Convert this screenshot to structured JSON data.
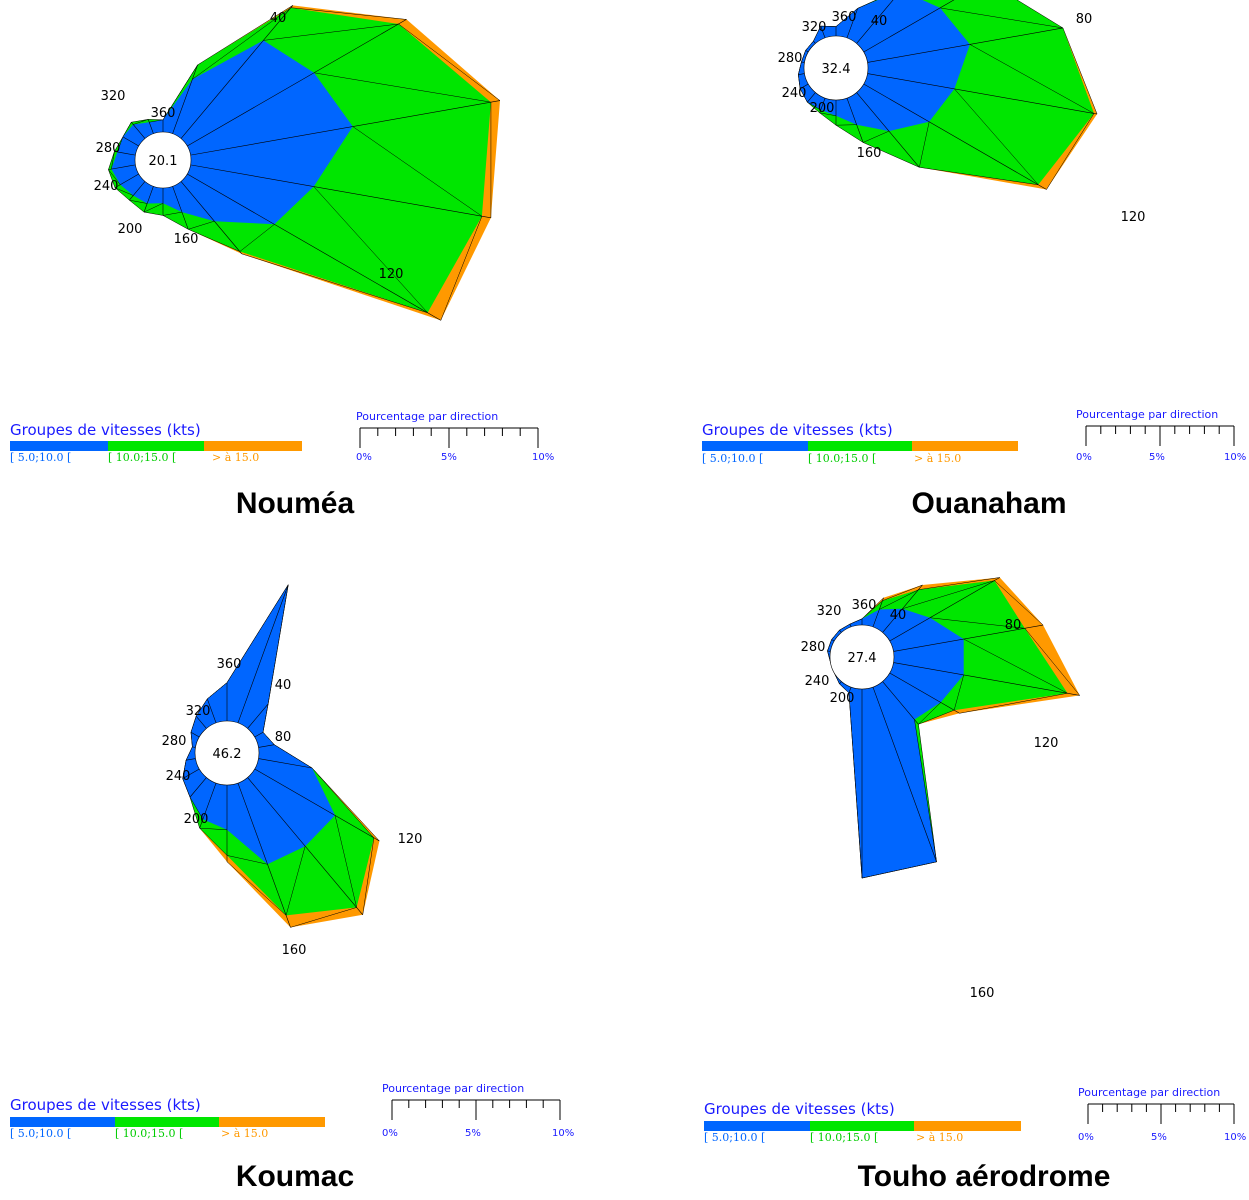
{
  "colors": {
    "low": "#0066ff",
    "mid": "#00e600",
    "high": "#ff9900",
    "text_blue": "#1a1aff",
    "edge": "#000000"
  },
  "legend": {
    "title": "Groupes de vitesses (kts)",
    "bins": [
      "[ 5.0;10.0 [",
      "[ 10.0;15.0 [",
      "> à 15.0"
    ]
  },
  "scale": {
    "title": "Pourcentage par direction",
    "labels": [
      "0%",
      "5%",
      "10%"
    ]
  },
  "chart_data": [
    {
      "type": "polar-area",
      "station": "Nouméa",
      "calm_percent": "20.1",
      "direction_labels": [
        "40",
        "120",
        "160",
        "200",
        "240",
        "280",
        "320",
        "360"
      ],
      "unit": "%",
      "directions": [
        360,
        20,
        40,
        60,
        80,
        100,
        120,
        140,
        160,
        180,
        200,
        220,
        240,
        260,
        280,
        300,
        320,
        340
      ],
      "series": [
        {
          "name": "[ 5.0;10.0 [",
          "values": [
            0.4,
            1.9,
            4.2,
            4.8,
            5.4,
            4.1,
            3.3,
            1.7,
            0.9,
            0.5,
            0.6,
            0.6,
            0.7,
            0.8,
            0.6,
            0.6,
            0.6,
            0.4
          ]
        },
        {
          "name": "[ 10.0;15.0 [",
          "values": [
            0.0,
            0.5,
            1.4,
            3.2,
            4.6,
            5.6,
            5.8,
            1.3,
            0.6,
            0.4,
            0.3,
            0.2,
            0.2,
            0.1,
            0.1,
            0.0,
            0.1,
            0.1
          ]
        },
        {
          "name": "> à 15.0",
          "values": [
            0.0,
            0.0,
            0.1,
            0.3,
            0.3,
            0.3,
            0.5,
            0.1,
            0.0,
            0.0,
            0.0,
            0.0,
            0.0,
            0.0,
            0.0,
            0.0,
            0.0,
            0.0
          ]
        }
      ]
    },
    {
      "type": "polar-area",
      "station": "Ouanaham",
      "calm_percent": "32.4",
      "direction_labels": [
        "40",
        "80",
        "120",
        "160",
        "200",
        "240",
        "280",
        "320",
        "360"
      ],
      "unit": "%",
      "directions": [
        360,
        20,
        40,
        60,
        80,
        100,
        120,
        140,
        160,
        180,
        200,
        220,
        240,
        260,
        280,
        300,
        320,
        340
      ],
      "series": [
        {
          "name": "[ 5.0;10.0 [",
          "values": [
            0.3,
            1.0,
            2.2,
            2.8,
            3.3,
            2.8,
            2.4,
            1.6,
            0.9,
            0.5,
            0.4,
            0.4,
            0.3,
            0.2,
            0.1,
            0.1,
            0.1,
            0.4
          ]
        },
        {
          "name": "[ 10.0;15.0 [",
          "values": [
            0.0,
            0.0,
            0.1,
            1.7,
            3.0,
            4.5,
            4.0,
            1.5,
            0.6,
            0.3,
            0.1,
            0.0,
            0.0,
            0.0,
            0.0,
            0.0,
            0.0,
            0.0
          ]
        },
        {
          "name": "> à 15.0",
          "values": [
            0.0,
            0.0,
            0.0,
            0.0,
            0.0,
            0.1,
            0.3,
            0.0,
            0.0,
            0.0,
            0.0,
            0.0,
            0.0,
            0.0,
            0.0,
            0.0,
            0.0,
            0.0
          ]
        }
      ]
    },
    {
      "type": "polar-area",
      "station": "Koumac",
      "calm_percent": "46.2",
      "direction_labels": [
        "40",
        "80",
        "120",
        "160",
        "200",
        "240",
        "280",
        "320",
        "360"
      ],
      "unit": "%",
      "directions": [
        360,
        20,
        40,
        60,
        80,
        100,
        120,
        140,
        160,
        180,
        200,
        220,
        240,
        260,
        280,
        300,
        320,
        340
      ],
      "series": [
        {
          "name": "[ 5.0;10.0 [",
          "values": [
            1.2,
            4.6,
            1.0,
            0.3,
            0.5,
            1.7,
            2.9,
            2.8,
            2.7,
            1.4,
            1.2,
            0.8,
            0.6,
            0.3,
            0.1,
            0.3,
            0.5,
            0.8
          ]
        },
        {
          "name": "[ 10.0;15.0 [",
          "values": [
            0.0,
            0.0,
            0.0,
            0.0,
            0.0,
            0.0,
            1.4,
            2.5,
            1.7,
            0.8,
            0.3,
            0.0,
            0.0,
            0.0,
            0.0,
            0.0,
            0.0,
            0.0
          ]
        },
        {
          "name": "> à 15.0",
          "values": [
            0.0,
            0.0,
            0.0,
            0.0,
            0.0,
            0.0,
            0.2,
            0.3,
            0.4,
            0.2,
            0.0,
            0.0,
            0.0,
            0.0,
            0.0,
            0.0,
            0.0,
            0.0
          ]
        }
      ]
    },
    {
      "type": "polar-area",
      "station": "Touho aérodrome",
      "calm_percent": "27.4",
      "direction_labels": [
        "40",
        "80",
        "120",
        "160",
        "200",
        "240",
        "280",
        "320",
        "360"
      ],
      "unit": "%",
      "directions": [
        360,
        20,
        40,
        60,
        80,
        100,
        120,
        140,
        160,
        180,
        200,
        220,
        240,
        260,
        280,
        300,
        320,
        340
      ],
      "series": [
        {
          "name": "[ 5.0;10.0 [",
          "values": [
            0.2,
            0.6,
            1.0,
            1.5,
            2.3,
            2.3,
            1.9,
            1.6,
            6.0,
            6.1,
            0.2,
            0.1,
            0.0,
            0.0,
            0.1,
            0.1,
            0.1,
            0.1
          ]
        },
        {
          "name": "[ 10.0;15.0 [",
          "values": [
            0.0,
            0.3,
            0.8,
            2.4,
            2.0,
            3.4,
            0.5,
            0.2,
            0.0,
            0.0,
            0.0,
            0.0,
            0.0,
            0.0,
            0.0,
            0.0,
            0.0,
            0.0
          ]
        },
        {
          "name": "> à 15.0",
          "values": [
            0.0,
            0.1,
            0.2,
            0.2,
            0.6,
            0.4,
            0.2,
            0.0,
            0.0,
            0.0,
            0.0,
            0.0,
            0.0,
            0.0,
            0.0,
            0.0,
            0.0,
            0.0
          ]
        }
      ]
    }
  ]
}
